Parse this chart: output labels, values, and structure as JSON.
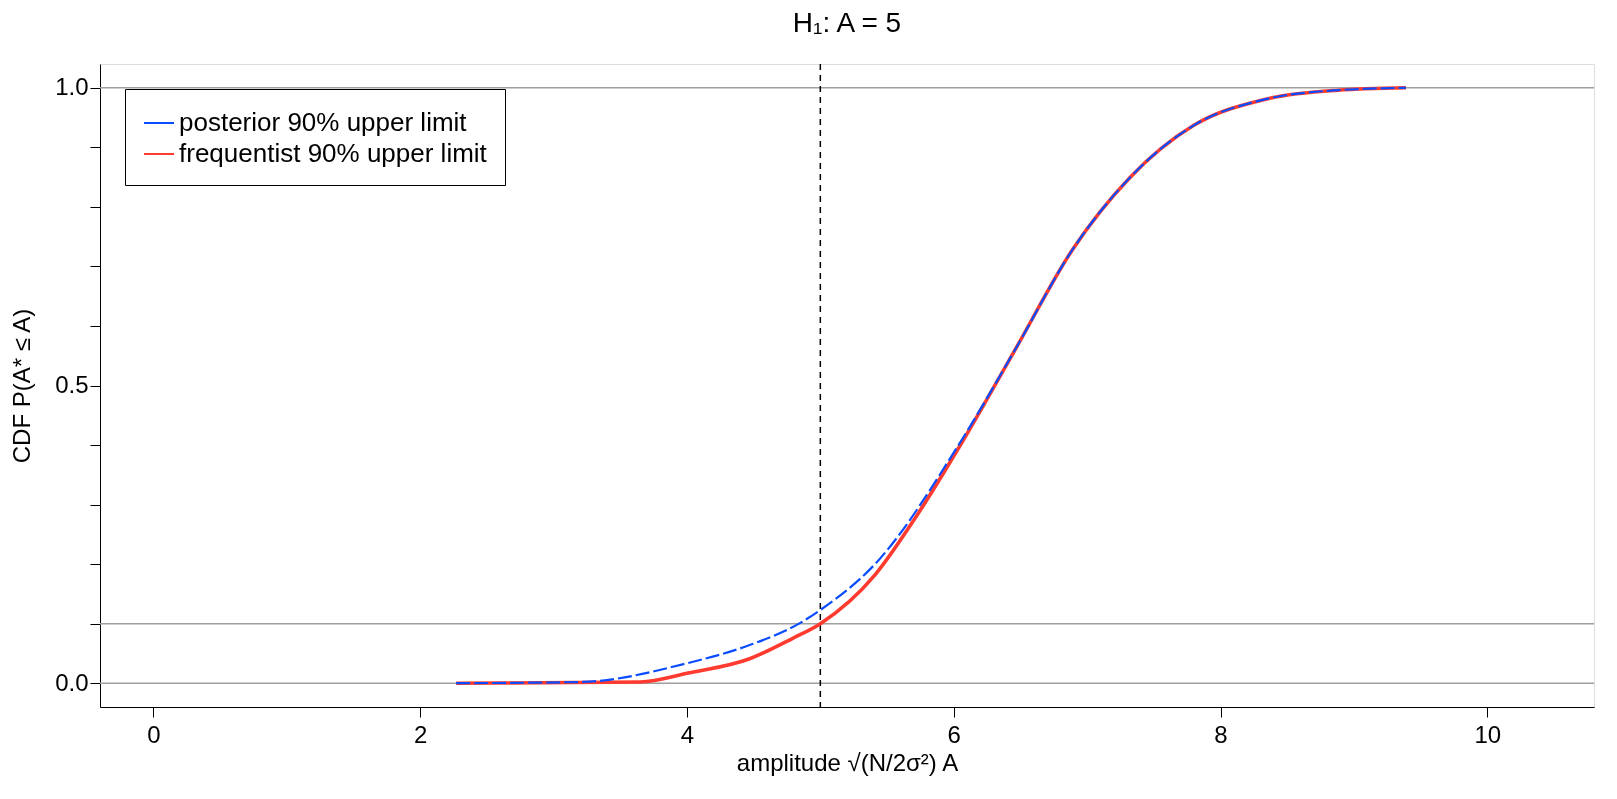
{
  "chart_data": {
    "type": "line",
    "title": "H₁: A = 5",
    "xlabel": "amplitude √(N/2σ²) A",
    "ylabel": "CDF P(A* ≤ A)",
    "series": [
      {
        "name": "posterior 90% upper limit",
        "color": "#0a4cff",
        "line_style": "dashed",
        "x": [
          2.27,
          3.2,
          4.01,
          4.47,
          4.84,
          5.0,
          5.41,
          6.05,
          6.46,
          6.89,
          7.32,
          7.8,
          8.34,
          8.88,
          9.39
        ],
        "values": [
          0.0,
          0.002,
          0.034,
          0.064,
          0.1,
          0.123,
          0.2,
          0.405,
          0.56,
          0.728,
          0.849,
          0.937,
          0.981,
          0.996,
          1.0
        ]
      },
      {
        "name": "frequentist 90% upper limit",
        "color": "#ff3b2f",
        "x": [
          2.27,
          3.65,
          4.01,
          4.47,
          4.79,
          5.0,
          5.41,
          5.71,
          6.05,
          6.46,
          6.89,
          7.32,
          7.8,
          8.34,
          8.88,
          9.39
        ],
        "values": [
          0.0,
          0.002,
          0.017,
          0.041,
          0.075,
          0.1,
          0.182,
          0.277,
          0.4,
          0.56,
          0.728,
          0.849,
          0.937,
          0.981,
          0.996,
          1.0
        ]
      }
    ],
    "xlim": [
      -0.4,
      10.8
    ],
    "ylim": [
      -0.04,
      1.04
    ],
    "xticks": [
      0,
      2,
      4,
      6,
      8,
      10
    ],
    "yticks": [
      {
        "value": 0,
        "label": "0.0"
      },
      {
        "value": 0.1,
        "label": null
      },
      {
        "value": 0.2,
        "label": null
      },
      {
        "value": 0.3,
        "label": null
      },
      {
        "value": 0.4,
        "label": null
      },
      {
        "value": 0.5,
        "label": "0.5"
      },
      {
        "value": 0.6,
        "label": null
      },
      {
        "value": 0.7,
        "label": null
      },
      {
        "value": 0.8,
        "label": null
      },
      {
        "value": 0.9,
        "label": null
      },
      {
        "value": 1.0,
        "label": "1.0"
      }
    ],
    "ref_lines": [
      {
        "axis": "y",
        "value": 0,
        "color": "#a0a0a0",
        "line_style": "solid"
      },
      {
        "axis": "y",
        "value": 0.1,
        "color": "#a0a0a0",
        "line_style": "solid"
      },
      {
        "axis": "y",
        "value": 1.0,
        "color": "#a0a0a0",
        "line_style": "solid"
      },
      {
        "axis": "x",
        "value": 5,
        "color": "#000000",
        "line_style": "dashed"
      }
    ],
    "grid": false,
    "legend": "top left",
    "line_style": "solid",
    "marker": "none"
  }
}
